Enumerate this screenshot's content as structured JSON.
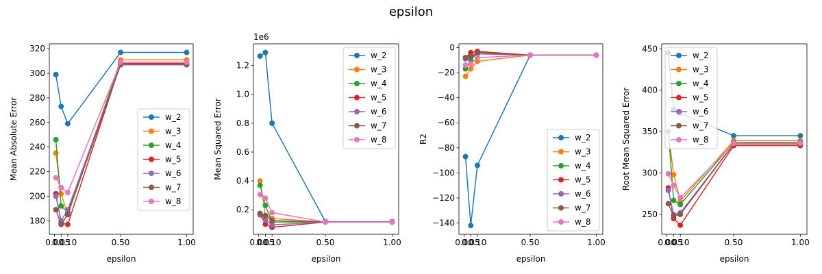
{
  "figure": {
    "suptitle": "epsilon"
  },
  "chart_data": [
    {
      "type": "line",
      "xlabel": "epsilon",
      "ylabel": "Mean Absolute Error",
      "x": [
        0.01,
        0.05,
        0.1,
        0.5,
        1.0
      ],
      "xticks": [
        0.0,
        0.05,
        0.1,
        0.5,
        1.0
      ],
      "xtick_labels": [
        "0.00",
        "0.05",
        "0.10",
        "0.50",
        "1.00"
      ],
      "xlim": [
        -0.0395,
        1.0495
      ],
      "ylim": [
        169,
        324
      ],
      "yticks": [
        180,
        200,
        220,
        240,
        260,
        280,
        300,
        320
      ],
      "ytick_labels": [
        "180",
        "200",
        "220",
        "240",
        "260",
        "280",
        "300",
        "320"
      ],
      "offset_label": "",
      "legend_position": "center right",
      "series": [
        {
          "name": "w_2",
          "values": [
            299,
            273,
            259,
            317,
            317
          ]
        },
        {
          "name": "w_3",
          "values": [
            235,
            202,
            185,
            311,
            311
          ]
        },
        {
          "name": "w_4",
          "values": [
            246,
            192,
            187,
            309,
            309
          ]
        },
        {
          "name": "w_5",
          "values": [
            202,
            178,
            177,
            308,
            308
          ]
        },
        {
          "name": "w_6",
          "values": [
            200,
            180,
            189,
            307,
            307
          ]
        },
        {
          "name": "w_7",
          "values": [
            189,
            177,
            185,
            307,
            307
          ]
        },
        {
          "name": "w_8",
          "values": [
            215,
            207,
            203,
            309,
            309
          ]
        }
      ]
    },
    {
      "type": "line",
      "xlabel": "epsilon",
      "ylabel": "Mean Squared Error",
      "x": [
        0.01,
        0.05,
        0.1,
        0.5,
        1.0
      ],
      "xticks": [
        0.0,
        0.05,
        0.1,
        0.5,
        1.0
      ],
      "xtick_labels": [
        "0.00",
        "0.05",
        "0.10",
        "0.50",
        "1.00"
      ],
      "xlim": [
        -0.0395,
        1.0495
      ],
      "ylim": [
        30000,
        1350000
      ],
      "yticks": [
        200000,
        400000,
        600000,
        800000,
        1000000,
        1200000
      ],
      "ytick_labels": [
        "0.2",
        "0.4",
        "0.6",
        "0.8",
        "1.0",
        "1.2"
      ],
      "offset_label": "1e6",
      "legend_position": "upper right",
      "series": [
        {
          "name": "w_2",
          "values": [
            1265000,
            1290000,
            800000,
            118000,
            118000
          ]
        },
        {
          "name": "w_3",
          "values": [
            400000,
            160000,
            140000,
            115000,
            115000
          ]
        },
        {
          "name": "w_4",
          "values": [
            370000,
            230000,
            115000,
            115000,
            115000
          ]
        },
        {
          "name": "w_5",
          "values": [
            165000,
            100000,
            78000,
            115000,
            115000
          ]
        },
        {
          "name": "w_6",
          "values": [
            170000,
            130000,
            95000,
            115000,
            115000
          ]
        },
        {
          "name": "w_7",
          "values": [
            175000,
            160000,
            125000,
            115000,
            115000
          ]
        },
        {
          "name": "w_8",
          "values": [
            305000,
            280000,
            180000,
            115000,
            115000
          ]
        }
      ]
    },
    {
      "type": "line",
      "xlabel": "epsilon",
      "ylabel": "R2",
      "x": [
        0.01,
        0.05,
        0.1,
        0.5,
        1.0
      ],
      "xticks": [
        0.0,
        0.05,
        0.1,
        0.5,
        1.0
      ],
      "xtick_labels": [
        "0.00",
        "0.05",
        "0.10",
        "0.50",
        "1.00"
      ],
      "xlim": [
        -0.0395,
        1.0495
      ],
      "ylim": [
        -149,
        3
      ],
      "yticks": [
        -140,
        -120,
        -100,
        -80,
        -60,
        -40,
        -20,
        0
      ],
      "ytick_labels": [
        "−140",
        "−120",
        "−100",
        "−80",
        "−60",
        "−40",
        "−20",
        "0"
      ],
      "offset_label": "",
      "legend_position": "lower right",
      "series": [
        {
          "name": "w_2",
          "values": [
            -87,
            -142,
            -94,
            -6,
            -6
          ]
        },
        {
          "name": "w_3",
          "values": [
            -23,
            -17,
            -11,
            -6,
            -6
          ]
        },
        {
          "name": "w_4",
          "values": [
            -17,
            -10,
            -4,
            -6,
            -6
          ]
        },
        {
          "name": "w_5",
          "values": [
            -8,
            -4,
            -3,
            -6,
            -6
          ]
        },
        {
          "name": "w_6",
          "values": [
            -9,
            -7,
            -5,
            -6,
            -6
          ]
        },
        {
          "name": "w_7",
          "values": [
            -8,
            -7,
            -4,
            -6,
            -6
          ]
        },
        {
          "name": "w_8",
          "values": [
            -14,
            -13,
            -8,
            -6,
            -6
          ]
        }
      ]
    },
    {
      "type": "line",
      "xlabel": "epsilon",
      "ylabel": "Root Mean Squared Error",
      "x": [
        0.01,
        0.05,
        0.1,
        0.5,
        1.0
      ],
      "xticks": [
        0.0,
        0.05,
        0.1,
        0.5,
        1.0
      ],
      "xtick_labels": [
        "0.00",
        "0.05",
        "0.10",
        "0.50",
        "1.00"
      ],
      "xlim": [
        -0.0395,
        1.0495
      ],
      "ylim": [
        226,
        456
      ],
      "yticks": [
        250,
        300,
        350,
        400,
        450
      ],
      "ytick_labels": [
        "250",
        "300",
        "350",
        "400",
        "450"
      ],
      "offset_label": "",
      "legend_position": "upper left",
      "series": [
        {
          "name": "w_2",
          "values": [
            445,
            377,
            372,
            345,
            345
          ]
        },
        {
          "name": "w_3",
          "values": [
            350,
            298,
            266,
            339,
            339
          ]
        },
        {
          "name": "w_4",
          "values": [
            350,
            267,
            262,
            337,
            337
          ]
        },
        {
          "name": "w_5",
          "values": [
            282,
            245,
            237,
            333,
            333
          ]
        },
        {
          "name": "w_6",
          "values": [
            279,
            250,
            252,
            335,
            335
          ]
        },
        {
          "name": "w_7",
          "values": [
            263,
            248,
            250,
            335,
            335
          ]
        },
        {
          "name": "w_8",
          "values": [
            299,
            285,
            270,
            336,
            336
          ]
        }
      ]
    }
  ],
  "colors": [
    "#1f77b4",
    "#ff7f0e",
    "#2ca02c",
    "#d62728",
    "#9467bd",
    "#8c564b",
    "#e377c2"
  ]
}
